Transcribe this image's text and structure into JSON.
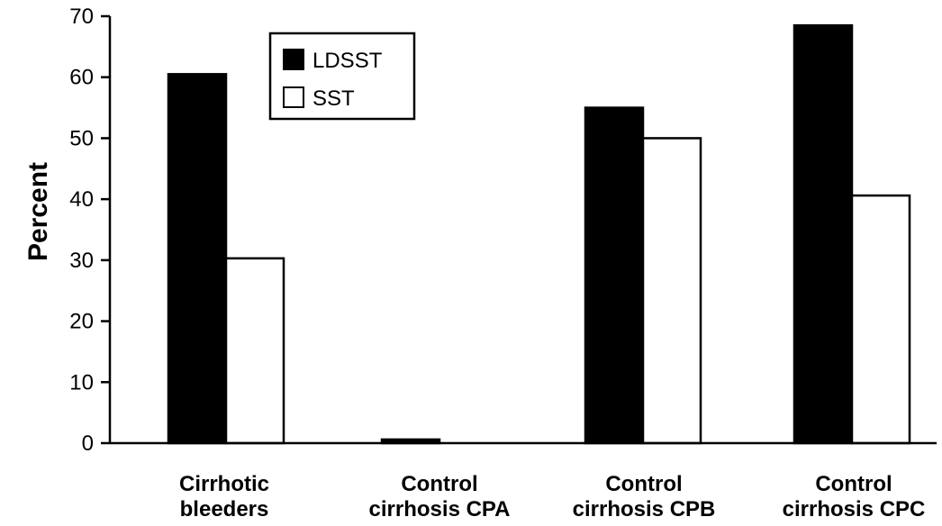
{
  "chart_data": {
    "type": "bar",
    "title": "",
    "xlabel": "",
    "ylabel": "Percent",
    "ylim": [
      0,
      70
    ],
    "yticks": [
      0,
      10,
      20,
      30,
      40,
      50,
      60,
      70
    ],
    "grid": false,
    "legend_position": "top-left",
    "categories": [
      [
        "Cirrhotic",
        "bleeders"
      ],
      [
        "Control",
        "cirrhosis CPA"
      ],
      [
        "Control",
        "cirrhosis CPB"
      ],
      [
        "Control",
        "cirrhosis CPC"
      ]
    ],
    "series": [
      {
        "name": "LDSST",
        "values": [
          60.5,
          0.6,
          55,
          68.5
        ],
        "color": "#000000"
      },
      {
        "name": "SST",
        "values": [
          30.3,
          0,
          50,
          40.6
        ],
        "color": "#ffffff"
      }
    ]
  }
}
